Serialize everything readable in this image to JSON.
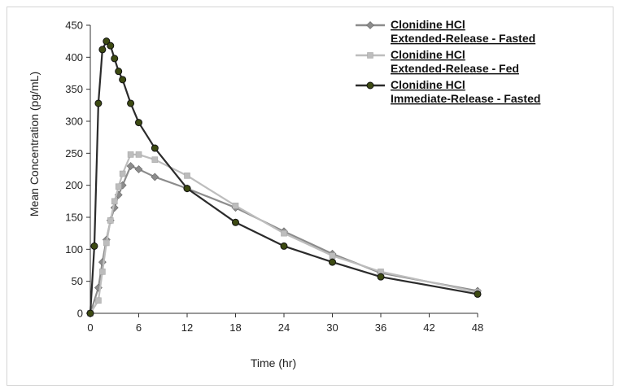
{
  "chart_data": {
    "type": "line",
    "xlabel": "Time (hr)",
    "ylabel": "Mean Concentration (pg/mL)",
    "xlim": [
      0,
      48
    ],
    "ylim": [
      0,
      450
    ],
    "xticks": [
      0,
      6,
      12,
      18,
      24,
      30,
      36,
      42,
      48
    ],
    "yticks": [
      0,
      50,
      100,
      150,
      200,
      250,
      300,
      350,
      400,
      450
    ],
    "grid": false,
    "legend_position": "top-right",
    "series": [
      {
        "name_lines": [
          "Clonidine HCl",
          "Extended-Release - Fasted"
        ],
        "color": "#8c8c8c",
        "marker": "diamond",
        "points": [
          [
            0,
            0
          ],
          [
            1,
            40
          ],
          [
            1.5,
            80
          ],
          [
            2,
            115
          ],
          [
            2.5,
            145
          ],
          [
            3,
            165
          ],
          [
            3.5,
            185
          ],
          [
            4,
            200
          ],
          [
            5,
            230
          ],
          [
            6,
            225
          ],
          [
            8,
            213
          ],
          [
            12,
            195
          ],
          [
            18,
            165
          ],
          [
            24,
            128
          ],
          [
            30,
            93
          ],
          [
            36,
            63
          ],
          [
            48,
            35
          ]
        ]
      },
      {
        "name_lines": [
          "Clonidine HCl",
          "Extended-Release - Fed"
        ],
        "color": "#bdbdbd",
        "marker": "square",
        "points": [
          [
            0,
            0
          ],
          [
            1,
            20
          ],
          [
            1.5,
            65
          ],
          [
            2,
            110
          ],
          [
            2.5,
            145
          ],
          [
            3,
            175
          ],
          [
            3.5,
            198
          ],
          [
            4,
            218
          ],
          [
            5,
            248
          ],
          [
            6,
            248
          ],
          [
            8,
            240
          ],
          [
            12,
            215
          ],
          [
            18,
            168
          ],
          [
            24,
            125
          ],
          [
            30,
            90
          ],
          [
            36,
            65
          ],
          [
            48,
            33
          ]
        ]
      },
      {
        "name_lines": [
          "Clonidine HCl",
          "Immediate-Release - Fasted"
        ],
        "color": "#2b2b2b",
        "marker": "circle",
        "marker_fill": "#3d4a12",
        "points": [
          [
            0,
            0
          ],
          [
            0.5,
            105
          ],
          [
            1,
            328
          ],
          [
            1.5,
            412
          ],
          [
            2,
            425
          ],
          [
            2.5,
            418
          ],
          [
            3,
            398
          ],
          [
            3.5,
            378
          ],
          [
            4,
            365
          ],
          [
            5,
            328
          ],
          [
            6,
            298
          ],
          [
            8,
            258
          ],
          [
            12,
            195
          ],
          [
            18,
            142
          ],
          [
            24,
            105
          ],
          [
            30,
            80
          ],
          [
            36,
            57
          ],
          [
            48,
            30
          ]
        ]
      }
    ]
  }
}
